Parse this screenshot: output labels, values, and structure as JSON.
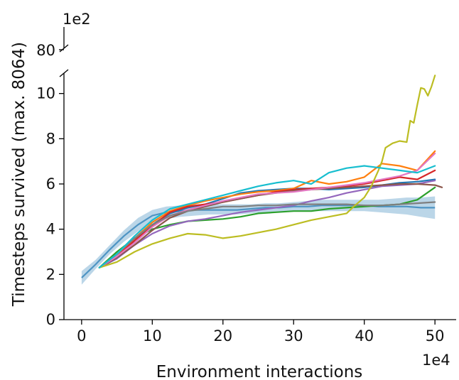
{
  "chart_data": {
    "type": "line",
    "xlabel": "Environment interactions",
    "ylabel": "Timesteps survived (max. 8064)",
    "x_exponent_label": "1e4",
    "y_exponent_label": "1e2",
    "xlim": [
      -2.5,
      53
    ],
    "ylim": [
      0,
      10.9
    ],
    "y_break_tick": "80",
    "x_ticks": [
      "0",
      "10",
      "20",
      "30",
      "40",
      "50"
    ],
    "y_ticks": [
      "0",
      "2",
      "4",
      "6",
      "8",
      "10"
    ],
    "grid": false,
    "legend": "none",
    "band": {
      "color": "#1f77b4",
      "x": [
        0,
        2,
        4,
        6,
        8,
        10,
        12,
        14,
        16,
        18,
        20,
        22,
        24,
        26,
        28,
        30,
        32,
        34,
        36,
        38,
        40,
        42,
        44,
        46,
        48,
        50
      ],
      "mean": [
        1.85,
        2.45,
        3.1,
        3.7,
        4.2,
        4.6,
        4.75,
        4.8,
        4.85,
        4.85,
        4.85,
        4.85,
        4.9,
        4.95,
        4.95,
        5.0,
        5.0,
        5.05,
        5.05,
        5.05,
        5.05,
        5.0,
        5.0,
        5.0,
        4.95,
        4.95
      ],
      "lower": [
        1.55,
        2.25,
        2.9,
        3.45,
        3.9,
        4.3,
        4.45,
        4.55,
        4.6,
        4.65,
        4.65,
        4.65,
        4.7,
        4.75,
        4.75,
        4.8,
        4.8,
        4.8,
        4.8,
        4.8,
        4.8,
        4.75,
        4.7,
        4.65,
        4.55,
        4.45
      ],
      "upper": [
        2.15,
        2.65,
        3.3,
        3.95,
        4.5,
        4.85,
        5.0,
        5.05,
        5.1,
        5.1,
        5.1,
        5.1,
        5.1,
        5.15,
        5.15,
        5.2,
        5.25,
        5.3,
        5.3,
        5.3,
        5.3,
        5.3,
        5.35,
        5.4,
        5.4,
        5.45
      ]
    },
    "series": [
      {
        "color": "#1f77b4",
        "x": [
          2.5,
          5,
          7.5,
          10,
          12.5,
          15,
          17.5,
          20,
          22.5,
          25,
          27.5,
          30,
          32.5,
          35,
          37.5,
          40,
          42.5,
          45,
          47.5,
          50
        ],
        "y": [
          2.3,
          2.7,
          3.5,
          4.2,
          4.7,
          4.95,
          5.1,
          5.35,
          5.6,
          5.7,
          5.75,
          5.8,
          5.8,
          5.75,
          5.8,
          5.85,
          5.95,
          6.05,
          6.1,
          6.2
        ]
      },
      {
        "color": "#ff7f0e",
        "x": [
          2.5,
          5,
          7.5,
          10,
          12.5,
          15,
          17.5,
          20,
          22.5,
          25,
          27.5,
          30,
          32.5,
          35,
          37.5,
          40,
          42.5,
          45,
          47.5,
          50
        ],
        "y": [
          2.3,
          2.8,
          3.6,
          4.3,
          4.8,
          5.05,
          5.25,
          5.4,
          5.55,
          5.65,
          5.7,
          5.8,
          6.15,
          6.0,
          6.1,
          6.3,
          6.9,
          6.8,
          6.6,
          7.45
        ]
      },
      {
        "color": "#2ca02c",
        "x": [
          2.5,
          5,
          7.5,
          10,
          12.5,
          15,
          17.5,
          20,
          22.5,
          25,
          27.5,
          30,
          32.5,
          35,
          37.5,
          40,
          42.5,
          45,
          47.5,
          50
        ],
        "y": [
          2.3,
          3.0,
          3.6,
          4.0,
          4.2,
          4.35,
          4.4,
          4.45,
          4.55,
          4.7,
          4.75,
          4.8,
          4.8,
          4.9,
          4.95,
          5.0,
          5.05,
          5.1,
          5.3,
          5.85
        ]
      },
      {
        "color": "#d62728",
        "x": [
          2.5,
          5,
          7.5,
          10,
          12.5,
          15,
          17.5,
          20,
          22.5,
          25,
          27.5,
          30,
          32.5,
          35,
          37.5,
          40,
          42.5,
          45,
          47.5,
          50
        ],
        "y": [
          2.3,
          2.8,
          3.5,
          4.15,
          4.75,
          5.0,
          5.1,
          5.2,
          5.35,
          5.5,
          5.65,
          5.75,
          5.8,
          5.85,
          5.9,
          6.0,
          6.15,
          6.3,
          6.2,
          6.6
        ]
      },
      {
        "color": "#9467bd",
        "x": [
          2.5,
          5,
          7.5,
          10,
          12.5,
          15,
          17.5,
          20,
          22.5,
          25,
          27.5,
          30,
          32.5,
          35,
          37.5,
          40,
          42.5,
          45,
          47.5,
          50
        ],
        "y": [
          2.3,
          2.7,
          3.3,
          3.8,
          4.15,
          4.35,
          4.45,
          4.6,
          4.75,
          4.85,
          4.95,
          5.05,
          5.25,
          5.4,
          5.6,
          5.75,
          5.9,
          5.95,
          6.0,
          6.15
        ]
      },
      {
        "color": "#8c564b",
        "x": [
          2.5,
          5,
          7.5,
          10,
          12.5,
          15,
          17.5,
          20,
          22.5,
          25,
          27.5,
          30,
          32.5,
          35,
          37.5,
          40,
          42.5,
          45,
          47.5,
          50,
          51
        ],
        "y": [
          2.3,
          2.75,
          3.3,
          3.95,
          4.5,
          4.8,
          5.0,
          5.2,
          5.35,
          5.5,
          5.6,
          5.7,
          5.75,
          5.8,
          5.85,
          5.9,
          5.95,
          6.0,
          6.0,
          5.95,
          5.85
        ]
      },
      {
        "color": "#e377c2",
        "x": [
          2.5,
          5,
          7.5,
          10,
          12.5,
          15,
          17.5,
          20,
          22.5,
          25,
          27.5,
          30,
          32.5,
          35,
          37.5,
          40,
          42.5,
          45,
          47.5,
          50
        ],
        "y": [
          2.3,
          2.8,
          3.4,
          4.1,
          4.6,
          4.85,
          5.05,
          5.25,
          5.4,
          5.55,
          5.6,
          5.65,
          5.75,
          5.85,
          5.95,
          6.05,
          6.2,
          6.35,
          6.6,
          7.35
        ]
      },
      {
        "color": "#7f7f7f",
        "x": [
          2.5,
          5,
          7.5,
          10,
          12.5,
          15,
          17.5,
          20,
          22.5,
          25,
          27.5,
          30,
          32.5,
          35,
          37.5,
          40,
          42.5,
          45,
          47.5,
          50
        ],
        "y": [
          2.3,
          2.9,
          3.6,
          4.2,
          4.6,
          4.8,
          4.9,
          5.0,
          5.0,
          5.05,
          5.05,
          5.1,
          5.1,
          5.1,
          5.1,
          5.05,
          5.05,
          5.1,
          5.15,
          5.2
        ]
      },
      {
        "color": "#bcbd22",
        "x": [
          2.5,
          5,
          7.5,
          10,
          12.5,
          15,
          17.5,
          20,
          22.5,
          25,
          27.5,
          30,
          32.5,
          35,
          37.5,
          38.5,
          40,
          41,
          42,
          42.5,
          43,
          44,
          45,
          46,
          46.5,
          47,
          47.5,
          48,
          48.5,
          49,
          49.5,
          50
        ],
        "y": [
          2.3,
          2.55,
          3.0,
          3.35,
          3.6,
          3.8,
          3.75,
          3.6,
          3.7,
          3.85,
          4.0,
          4.2,
          4.4,
          4.55,
          4.7,
          5.0,
          5.4,
          5.9,
          6.6,
          7.0,
          7.6,
          7.8,
          7.9,
          7.85,
          8.8,
          8.7,
          9.5,
          10.25,
          10.2,
          9.9,
          10.3,
          10.8
        ]
      },
      {
        "color": "#17becf",
        "x": [
          2.5,
          5,
          7.5,
          10,
          12.5,
          15,
          17.5,
          20,
          22.5,
          25,
          27.5,
          30,
          32.5,
          35,
          37.5,
          40,
          42.5,
          45,
          47.5,
          50
        ],
        "y": [
          2.3,
          2.9,
          3.7,
          4.4,
          4.9,
          5.1,
          5.3,
          5.5,
          5.7,
          5.9,
          6.05,
          6.15,
          6.0,
          6.5,
          6.7,
          6.8,
          6.7,
          6.6,
          6.5,
          6.8
        ]
      }
    ]
  }
}
